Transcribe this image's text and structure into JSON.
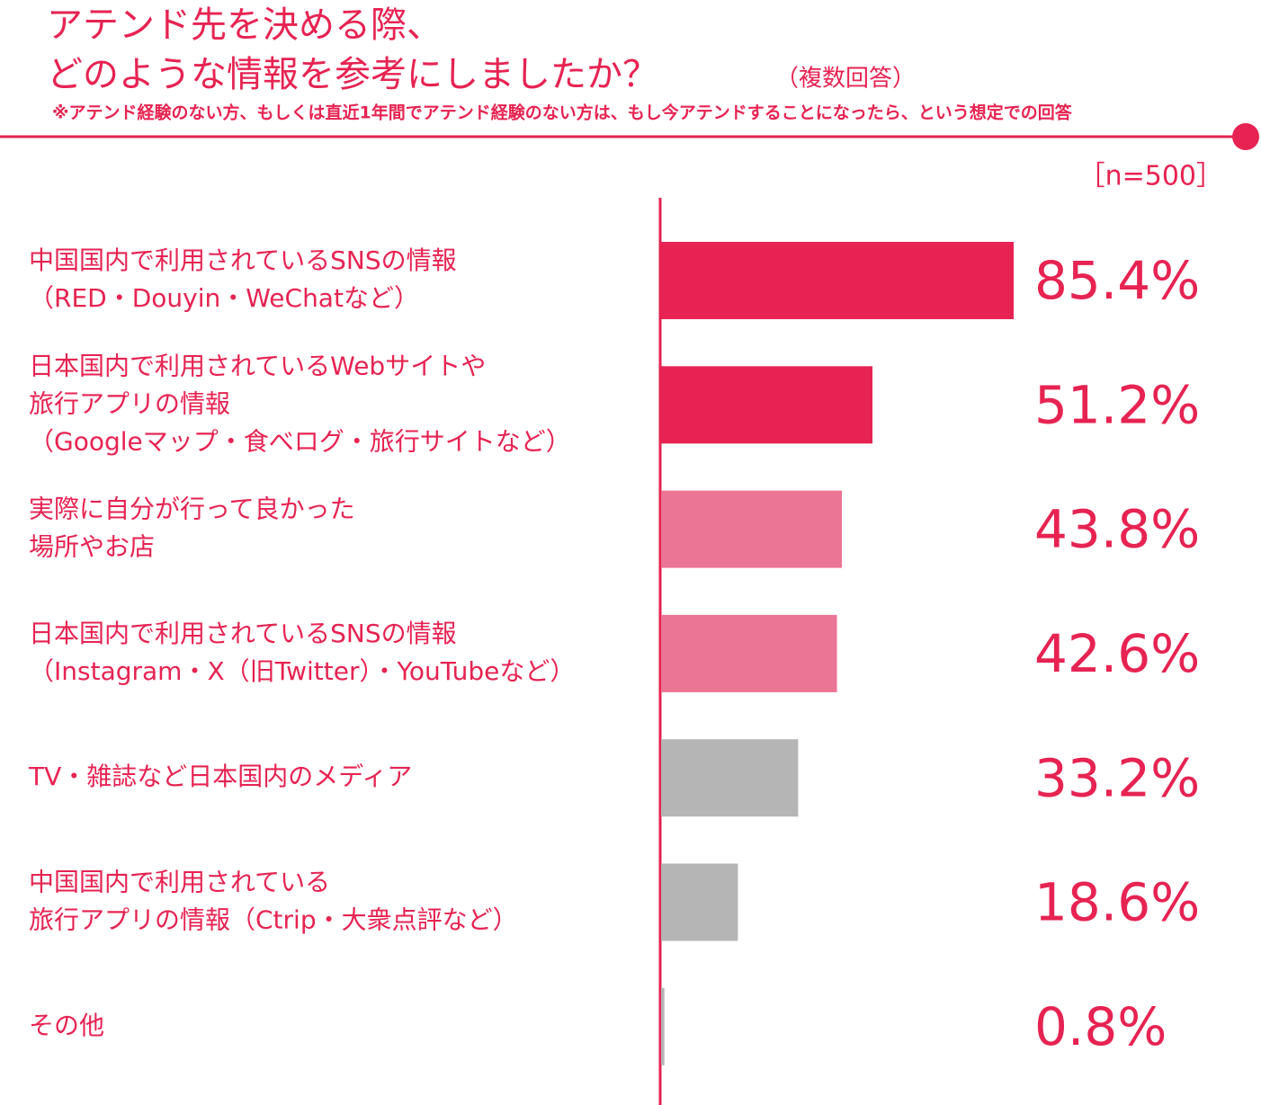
{
  "chart_data": {
    "type": "bar",
    "orientation": "horizontal",
    "title": [
      "アテンド先を決める際、",
      "どのような情報を参考にしましたか？"
    ],
    "subtitle": "（複数回答）",
    "note": "※アテンド経験のない方、もしくは直近1年間でアテンド経験のない方は、もし今アテンドすることになったら、という想定での回答",
    "sample_label": "［n=500］",
    "categories": [
      [
        "中国国内で利用されているSNSの情報",
        "（RED・Douyin・WeChatなど）"
      ],
      [
        "日本国内で利用されているWebサイトや",
        "旅行アプリの情報",
        "（Googleマップ・食べログ・旅行サイトなど）"
      ],
      [
        "実際に自分が行って良かった",
        "場所やお店"
      ],
      [
        "日本国内で利用されているSNSの情報",
        "（Instagram・X（旧Twitter）・YouTubeなど）"
      ],
      [
        "TV・雑誌など日本国内のメディア"
      ],
      [
        "中国国内で利用されている",
        "旅行アプリの情報（Ctrip・大衆点評など）"
      ],
      [
        "その他"
      ]
    ],
    "values": [
      85.4,
      51.2,
      43.8,
      42.6,
      33.2,
      18.6,
      0.8
    ],
    "value_labels": [
      "85.4%",
      "51.2%",
      "43.8%",
      "42.6%",
      "33.2%",
      "18.6%",
      "0.8%"
    ],
    "colors": [
      "#e62352",
      "#e62352",
      "#eb7594",
      "#eb7594",
      "#b5b5b5",
      "#b5b5b5",
      "#b5b5b5"
    ]
  }
}
